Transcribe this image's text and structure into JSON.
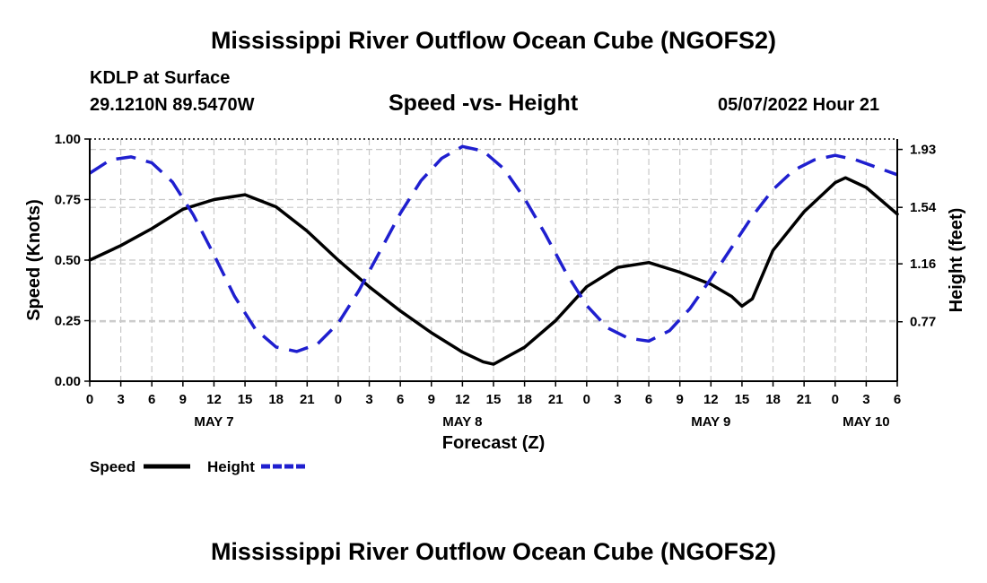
{
  "header": {
    "title": "Mississippi River Outflow Ocean Cube (NGOFS2)",
    "station": "KDLP at Surface",
    "coords": "29.1210N  89.5470W",
    "subtitle": "Speed -vs- Height",
    "datetime": "05/07/2022 Hour 21"
  },
  "footer": {
    "title": "Mississippi River Outflow Ocean Cube (NGOFS2)"
  },
  "legend": {
    "speed_label": "Speed",
    "height_label": "Height"
  },
  "colors": {
    "speed": "#000000",
    "height": "#1f1fcf",
    "grid": "#c8c8c8"
  },
  "chart_data": {
    "type": "line",
    "xlabel": "Forecast (Z)",
    "ylabel_left": "Speed (Knots)",
    "ylabel_right": "Height (feet)",
    "xlim": [
      0,
      78
    ],
    "x_ticks": [
      0,
      3,
      6,
      9,
      12,
      15,
      18,
      21,
      24,
      27,
      30,
      33,
      36,
      39,
      42,
      45,
      48,
      51,
      54,
      57,
      60,
      63,
      66,
      69,
      72,
      75,
      78
    ],
    "x_tick_labels": [
      "0",
      "3",
      "6",
      "9",
      "12",
      "15",
      "18",
      "21",
      "0",
      "3",
      "6",
      "9",
      "12",
      "15",
      "18",
      "21",
      "0",
      "3",
      "6",
      "9",
      "12",
      "15",
      "18",
      "21",
      "0",
      "3",
      "6"
    ],
    "date_labels": [
      {
        "x": 12,
        "label": "MAY 7"
      },
      {
        "x": 36,
        "label": "MAY 8"
      },
      {
        "x": 60,
        "label": "MAY 9"
      },
      {
        "x": 75,
        "label": "MAY 10"
      }
    ],
    "ylim_left": [
      0,
      1.0
    ],
    "y_left_ticks": [
      0,
      0.25,
      0.5,
      0.75,
      1.0
    ],
    "y_left_tick_labels": [
      "0.00",
      "0.25",
      "0.50",
      "0.75",
      "1.00"
    ],
    "ylim_right": [
      0.37,
      2.0
    ],
    "y_right_ticks": [
      0.77,
      1.16,
      1.54,
      1.93
    ],
    "y_right_tick_labels": [
      "0.77",
      "1.16",
      "1.54",
      "1.93"
    ],
    "series": [
      {
        "name": "Speed",
        "axis": "left",
        "style": "solid",
        "x": [
          0,
          3,
          6,
          9,
          12,
          15,
          18,
          21,
          24,
          27,
          30,
          33,
          36,
          38,
          39,
          42,
          45,
          48,
          51,
          54,
          57,
          60,
          62,
          63,
          64,
          66,
          69,
          72,
          73,
          75,
          78
        ],
        "values": [
          0.5,
          0.56,
          0.63,
          0.71,
          0.75,
          0.77,
          0.72,
          0.62,
          0.5,
          0.39,
          0.29,
          0.2,
          0.12,
          0.08,
          0.07,
          0.14,
          0.25,
          0.39,
          0.47,
          0.49,
          0.45,
          0.4,
          0.35,
          0.31,
          0.34,
          0.54,
          0.7,
          0.82,
          0.84,
          0.8,
          0.69
        ]
      },
      {
        "name": "Height",
        "axis": "right",
        "style": "dashed",
        "x": [
          0,
          2,
          4,
          6,
          8,
          10,
          12,
          14,
          16,
          18,
          20,
          22,
          24,
          26,
          28,
          30,
          32,
          34,
          36,
          38,
          40,
          42,
          44,
          46,
          48,
          50,
          52,
          54,
          56,
          58,
          60,
          62,
          64,
          66,
          68,
          70,
          72,
          74,
          76,
          78
        ],
        "values": [
          1.77,
          1.86,
          1.88,
          1.84,
          1.71,
          1.49,
          1.22,
          0.94,
          0.72,
          0.6,
          0.57,
          0.62,
          0.76,
          0.98,
          1.24,
          1.5,
          1.72,
          1.87,
          1.95,
          1.92,
          1.8,
          1.6,
          1.36,
          1.1,
          0.88,
          0.73,
          0.66,
          0.64,
          0.71,
          0.86,
          1.06,
          1.27,
          1.48,
          1.66,
          1.79,
          1.86,
          1.89,
          1.86,
          1.81,
          1.76
        ]
      }
    ]
  }
}
